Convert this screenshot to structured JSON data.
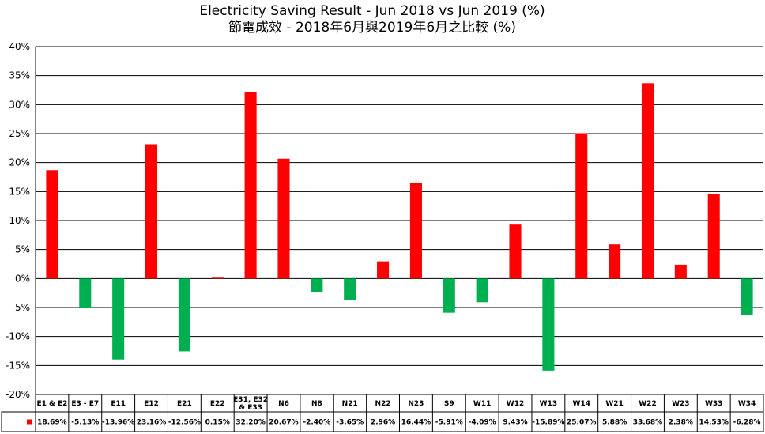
{
  "chart_data": {
    "type": "bar",
    "title": "Electricity Saving Result - Jun 2018 vs Jun 2019 (%)",
    "subtitle": "節電成效 - 2018年6月與2019年6月之比較 (%)",
    "ylim": [
      -20,
      40
    ],
    "ytick_step": 5,
    "y_unit": "%",
    "grid": true,
    "positive_color": "#ff0000",
    "negative_color": "#00b050",
    "legend_marker_color": "#ff0000",
    "categories": [
      [
        "E1 & E2"
      ],
      [
        "E3 - E7"
      ],
      [
        "E11"
      ],
      [
        "E12"
      ],
      [
        "E21"
      ],
      [
        "E22"
      ],
      [
        "E31, E32",
        "& E33"
      ],
      [
        "N6"
      ],
      [
        "N8"
      ],
      [
        "N21"
      ],
      [
        "N22"
      ],
      [
        "N23"
      ],
      [
        "S9"
      ],
      [
        "W11"
      ],
      [
        "W12"
      ],
      [
        "W13"
      ],
      [
        "W14"
      ],
      [
        "W21"
      ],
      [
        "W22"
      ],
      [
        "W23"
      ],
      [
        "W33"
      ],
      [
        "W34"
      ]
    ],
    "values": [
      18.69,
      -5.13,
      -13.96,
      23.16,
      -12.56,
      0.15,
      32.2,
      20.67,
      -2.4,
      -3.65,
      2.96,
      16.44,
      -5.91,
      -4.09,
      9.43,
      -15.89,
      25.07,
      5.88,
      33.68,
      2.38,
      14.53,
      -6.28
    ],
    "value_labels": [
      "18.69%",
      "-5.13%",
      "-13.96%",
      "23.16%",
      "-12.56%",
      "0.15%",
      "32.20%",
      "20.67%",
      "-2.40%",
      "-3.65%",
      "2.96%",
      "16.44%",
      "-5.91%",
      "-4.09%",
      "9.43%",
      "-15.89%",
      "25.07%",
      "5.88%",
      "33.68%",
      "2.38%",
      "14.53%",
      "-6.28%"
    ]
  }
}
